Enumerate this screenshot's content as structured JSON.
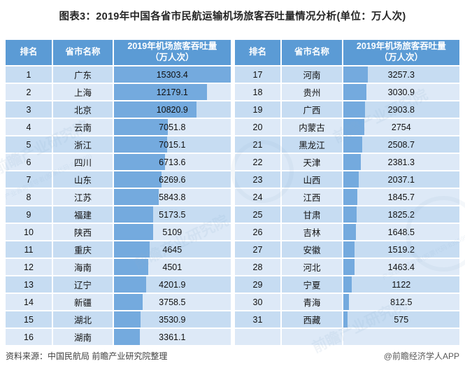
{
  "title": "图表3：2019年中国各省市民航运输机场旅客吞吐量情况分析(单位：万人次)",
  "table_headers": {
    "rank": "排名",
    "name": "省市名称",
    "value_line1": "2019年机场旅客吞吐量",
    "value_line2": "（万人次）"
  },
  "footer": {
    "source": "资料来源：中国民航局 前瞻产业研究院整理",
    "credit": "@前瞻经济学人APP"
  },
  "watermark": {
    "text": "前瞻产业研究院",
    "secondary": "产业咨询领导者(股票代码:839599)"
  },
  "colors": {
    "header_bg": "#5b9bd5",
    "row_odd": "#c6dcf2",
    "row_even": "#dde9f7",
    "bar": "#74aade",
    "title_text": "#262626",
    "footer_text": "#404040"
  },
  "chart_data": {
    "type": "table",
    "title": "图表3：2019年中国各省市民航运输机场旅客吞吐量情况分析(单位：万人次)",
    "unit": "万人次",
    "columns": [
      "排名",
      "省市名称",
      "2019年机场旅客吞吐量（万人次）"
    ],
    "max_value": 15303.4,
    "rows_per_column_block": 16,
    "rows": [
      {
        "rank": "1",
        "name": "广东",
        "value": 15303.4
      },
      {
        "rank": "2",
        "name": "上海",
        "value": 12179.1
      },
      {
        "rank": "3",
        "name": "北京",
        "value": 10820.9
      },
      {
        "rank": "4",
        "name": "云南",
        "value": 7051.8
      },
      {
        "rank": "5",
        "name": "浙江",
        "value": 7015.1
      },
      {
        "rank": "6",
        "name": "四川",
        "value": 6713.6
      },
      {
        "rank": "7",
        "name": "山东",
        "value": 6269.6
      },
      {
        "rank": "8",
        "name": "江苏",
        "value": 5843.8
      },
      {
        "rank": "9",
        "name": "福建",
        "value": 5173.5
      },
      {
        "rank": "10",
        "name": "陕西",
        "value": 5109
      },
      {
        "rank": "11",
        "name": "重庆",
        "value": 4645
      },
      {
        "rank": "12",
        "name": "海南",
        "value": 4501
      },
      {
        "rank": "13",
        "name": "辽宁",
        "value": 4201.9
      },
      {
        "rank": "14",
        "name": "新疆",
        "value": 3758.5
      },
      {
        "rank": "15",
        "name": "湖北",
        "value": 3530.9
      },
      {
        "rank": "16",
        "name": "湖南",
        "value": 3361.1
      },
      {
        "rank": "17",
        "name": "河南",
        "value": 3257.3
      },
      {
        "rank": "18",
        "name": "贵州",
        "value": 3030.9
      },
      {
        "rank": "19",
        "name": "广西",
        "value": 2903.8
      },
      {
        "rank": "20",
        "name": "内蒙古",
        "value": 2754
      },
      {
        "rank": "21",
        "name": "黑龙江",
        "value": 2508.7
      },
      {
        "rank": "22",
        "name": "天津",
        "value": 2381.3
      },
      {
        "rank": "23",
        "name": "山西",
        "value": 2037.1
      },
      {
        "rank": "24",
        "name": "江西",
        "value": 1845.7
      },
      {
        "rank": "25",
        "name": "甘肃",
        "value": 1825.2
      },
      {
        "rank": "26",
        "name": "吉林",
        "value": 1648.5
      },
      {
        "rank": "27",
        "name": "安徽",
        "value": 1519.2
      },
      {
        "rank": "28",
        "name": "河北",
        "value": 1463.4
      },
      {
        "rank": "29",
        "name": "宁夏",
        "value": 1122
      },
      {
        "rank": "30",
        "name": "青海",
        "value": 812.5
      },
      {
        "rank": "31",
        "name": "西藏",
        "value": 575
      }
    ]
  }
}
